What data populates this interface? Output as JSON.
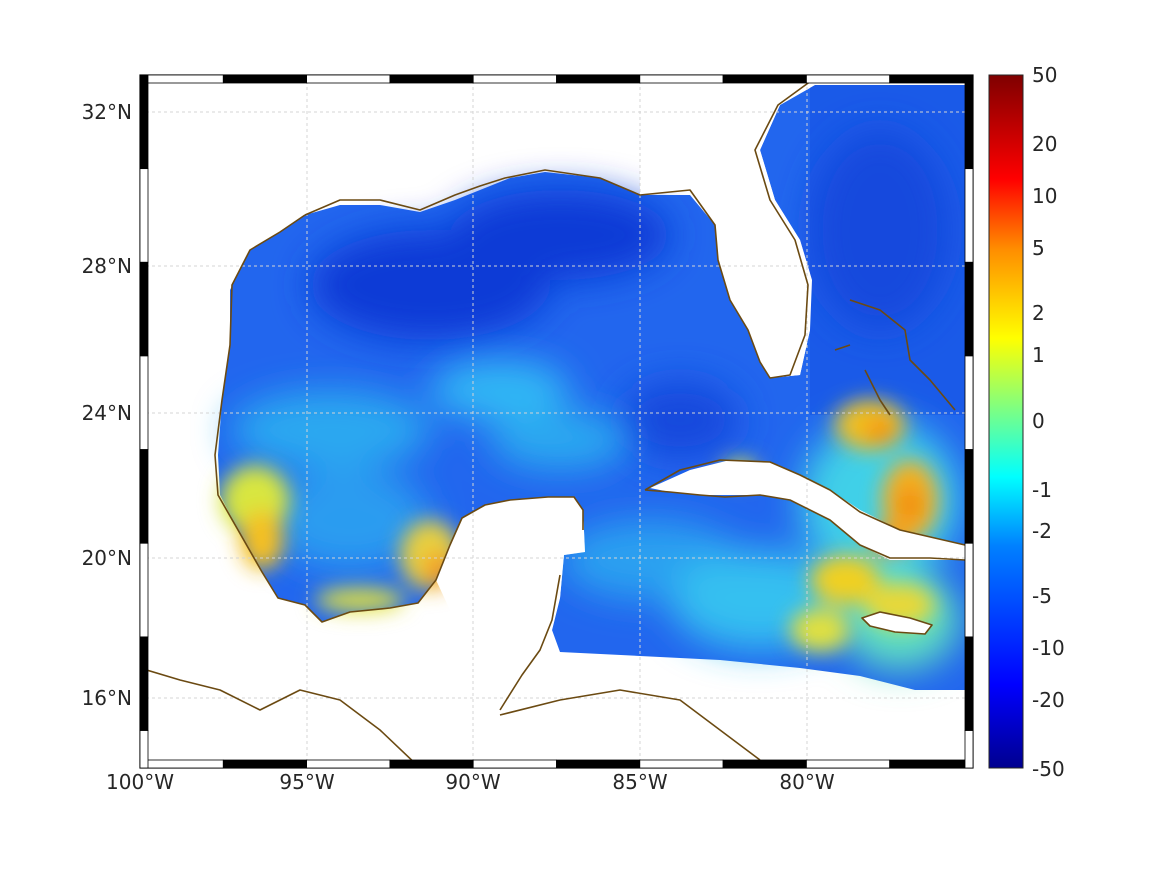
{
  "map": {
    "lon_ticks": [
      "100°W",
      "95°W",
      "90°W",
      "85°W",
      "80°W"
    ],
    "lat_ticks": [
      "32°N",
      "28°N",
      "24°N",
      "20°N",
      "16°N"
    ],
    "lon_range": [
      -100,
      -75
    ],
    "lat_range": [
      14.5,
      33
    ]
  },
  "colorbar": {
    "ticks": [
      "50",
      "20",
      "10",
      "5",
      "2",
      "1",
      "0",
      "-1",
      "-2",
      "-5",
      "-10",
      "-20",
      "-50"
    ],
    "colors": [
      "#7f0000",
      "#ff0000",
      "#ff8c00",
      "#ffff00",
      "#80ff80",
      "#00ffff",
      "#0080ff",
      "#0000ff",
      "#00008f"
    ]
  },
  "colors": {
    "coastline": "#6b4a12",
    "land": "#ffffff",
    "grid": "#cfcfcf"
  }
}
